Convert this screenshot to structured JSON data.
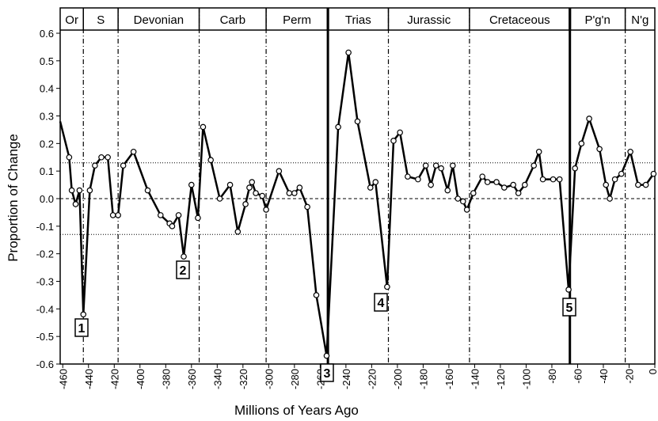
{
  "chart_data": {
    "type": "line",
    "xlabel": "Millions of Years Ago",
    "ylabel": "Proportion of Change",
    "xlim": [
      -462,
      0
    ],
    "ylim": [
      -0.6,
      0.6
    ],
    "xticks": [
      -460,
      -440,
      -420,
      -400,
      -380,
      -360,
      -340,
      -320,
      -300,
      -280,
      -260,
      -240,
      -220,
      -200,
      -180,
      -160,
      -140,
      -120,
      -100,
      -80,
      -60,
      -40,
      -20,
      0
    ],
    "yticks": [
      -0.6,
      -0.5,
      -0.4,
      -0.3,
      -0.2,
      -0.1,
      {
        "value": 0,
        "label": "0.0"
      },
      0.1,
      0.2,
      0.3,
      0.4,
      0.5,
      0.6
    ],
    "periods": [
      "Or",
      "S",
      "Devonian",
      "Carb",
      "Perm",
      "Trias",
      "Jurassic",
      "Cretaceous",
      "P'g'n",
      "N'g"
    ],
    "boundaries": [
      -444,
      -417,
      -354,
      -302,
      -254,
      -207,
      -144,
      -66,
      -23
    ],
    "boundary_styles": [
      "dashdot",
      "dashdot",
      "dashdot",
      "dashdot",
      "thick",
      "dashdot",
      "dashdot",
      "thick",
      "dashdot"
    ],
    "hlines": [
      0.13,
      0,
      -0.13
    ],
    "hline_styles": [
      "dotted",
      "dashed",
      "dotted"
    ],
    "annotations": [
      "1",
      "2",
      "3",
      "4",
      "5"
    ],
    "color": "#000000",
    "x": [
      -462,
      -455,
      -453,
      -450,
      -447,
      -444,
      -439,
      -435,
      -430,
      -425,
      -421,
      -417,
      -413,
      -405,
      -394,
      -384,
      -377,
      -375,
      -370,
      -366,
      -360,
      -355,
      -351,
      -345,
      -338,
      -330,
      -324,
      -318,
      -315,
      -313,
      -310,
      -305,
      -302,
      -292,
      -284,
      -280,
      -276,
      -270,
      -263,
      -255,
      -246,
      -238,
      -231,
      -221,
      -217,
      -208,
      -203,
      -198,
      -192,
      -184,
      -178,
      -174,
      -170,
      -166,
      -161,
      -157,
      -153,
      -149,
      -146,
      -141,
      -134,
      -130,
      -123,
      -117,
      -110,
      -106,
      -101,
      -94,
      -90,
      -87,
      -79,
      -74,
      -67,
      -62,
      -57,
      -51,
      -43,
      -38,
      -35,
      -31,
      -26,
      -19,
      -13,
      -7,
      -1
    ],
    "values": [
      0.28,
      0.15,
      0.03,
      -0.02,
      0.03,
      -0.42,
      0.03,
      0.12,
      0.15,
      0.15,
      -0.06,
      -0.06,
      0.12,
      0.17,
      0.03,
      -0.06,
      -0.09,
      -0.1,
      -0.06,
      -0.21,
      0.05,
      -0.07,
      0.26,
      0.14,
      0.0,
      0.05,
      -0.12,
      -0.02,
      0.04,
      0.06,
      0.02,
      0.01,
      -0.04,
      0.1,
      0.02,
      0.02,
      0.04,
      -0.03,
      -0.35,
      -0.57,
      0.26,
      0.53,
      0.28,
      0.04,
      0.06,
      -0.32,
      0.21,
      0.24,
      0.08,
      0.07,
      0.12,
      0.05,
      0.12,
      0.11,
      0.03,
      0.12,
      0.0,
      -0.01,
      -0.04,
      0.02,
      0.08,
      0.06,
      0.06,
      0.04,
      0.05,
      0.02,
      0.05,
      0.12,
      0.17,
      0.07,
      0.07,
      0.07,
      -0.33,
      0.11,
      0.2,
      0.29,
      0.18,
      0.05,
      0.0,
      0.07,
      0.09,
      0.17,
      0.05,
      0.05,
      0.09
    ]
  }
}
